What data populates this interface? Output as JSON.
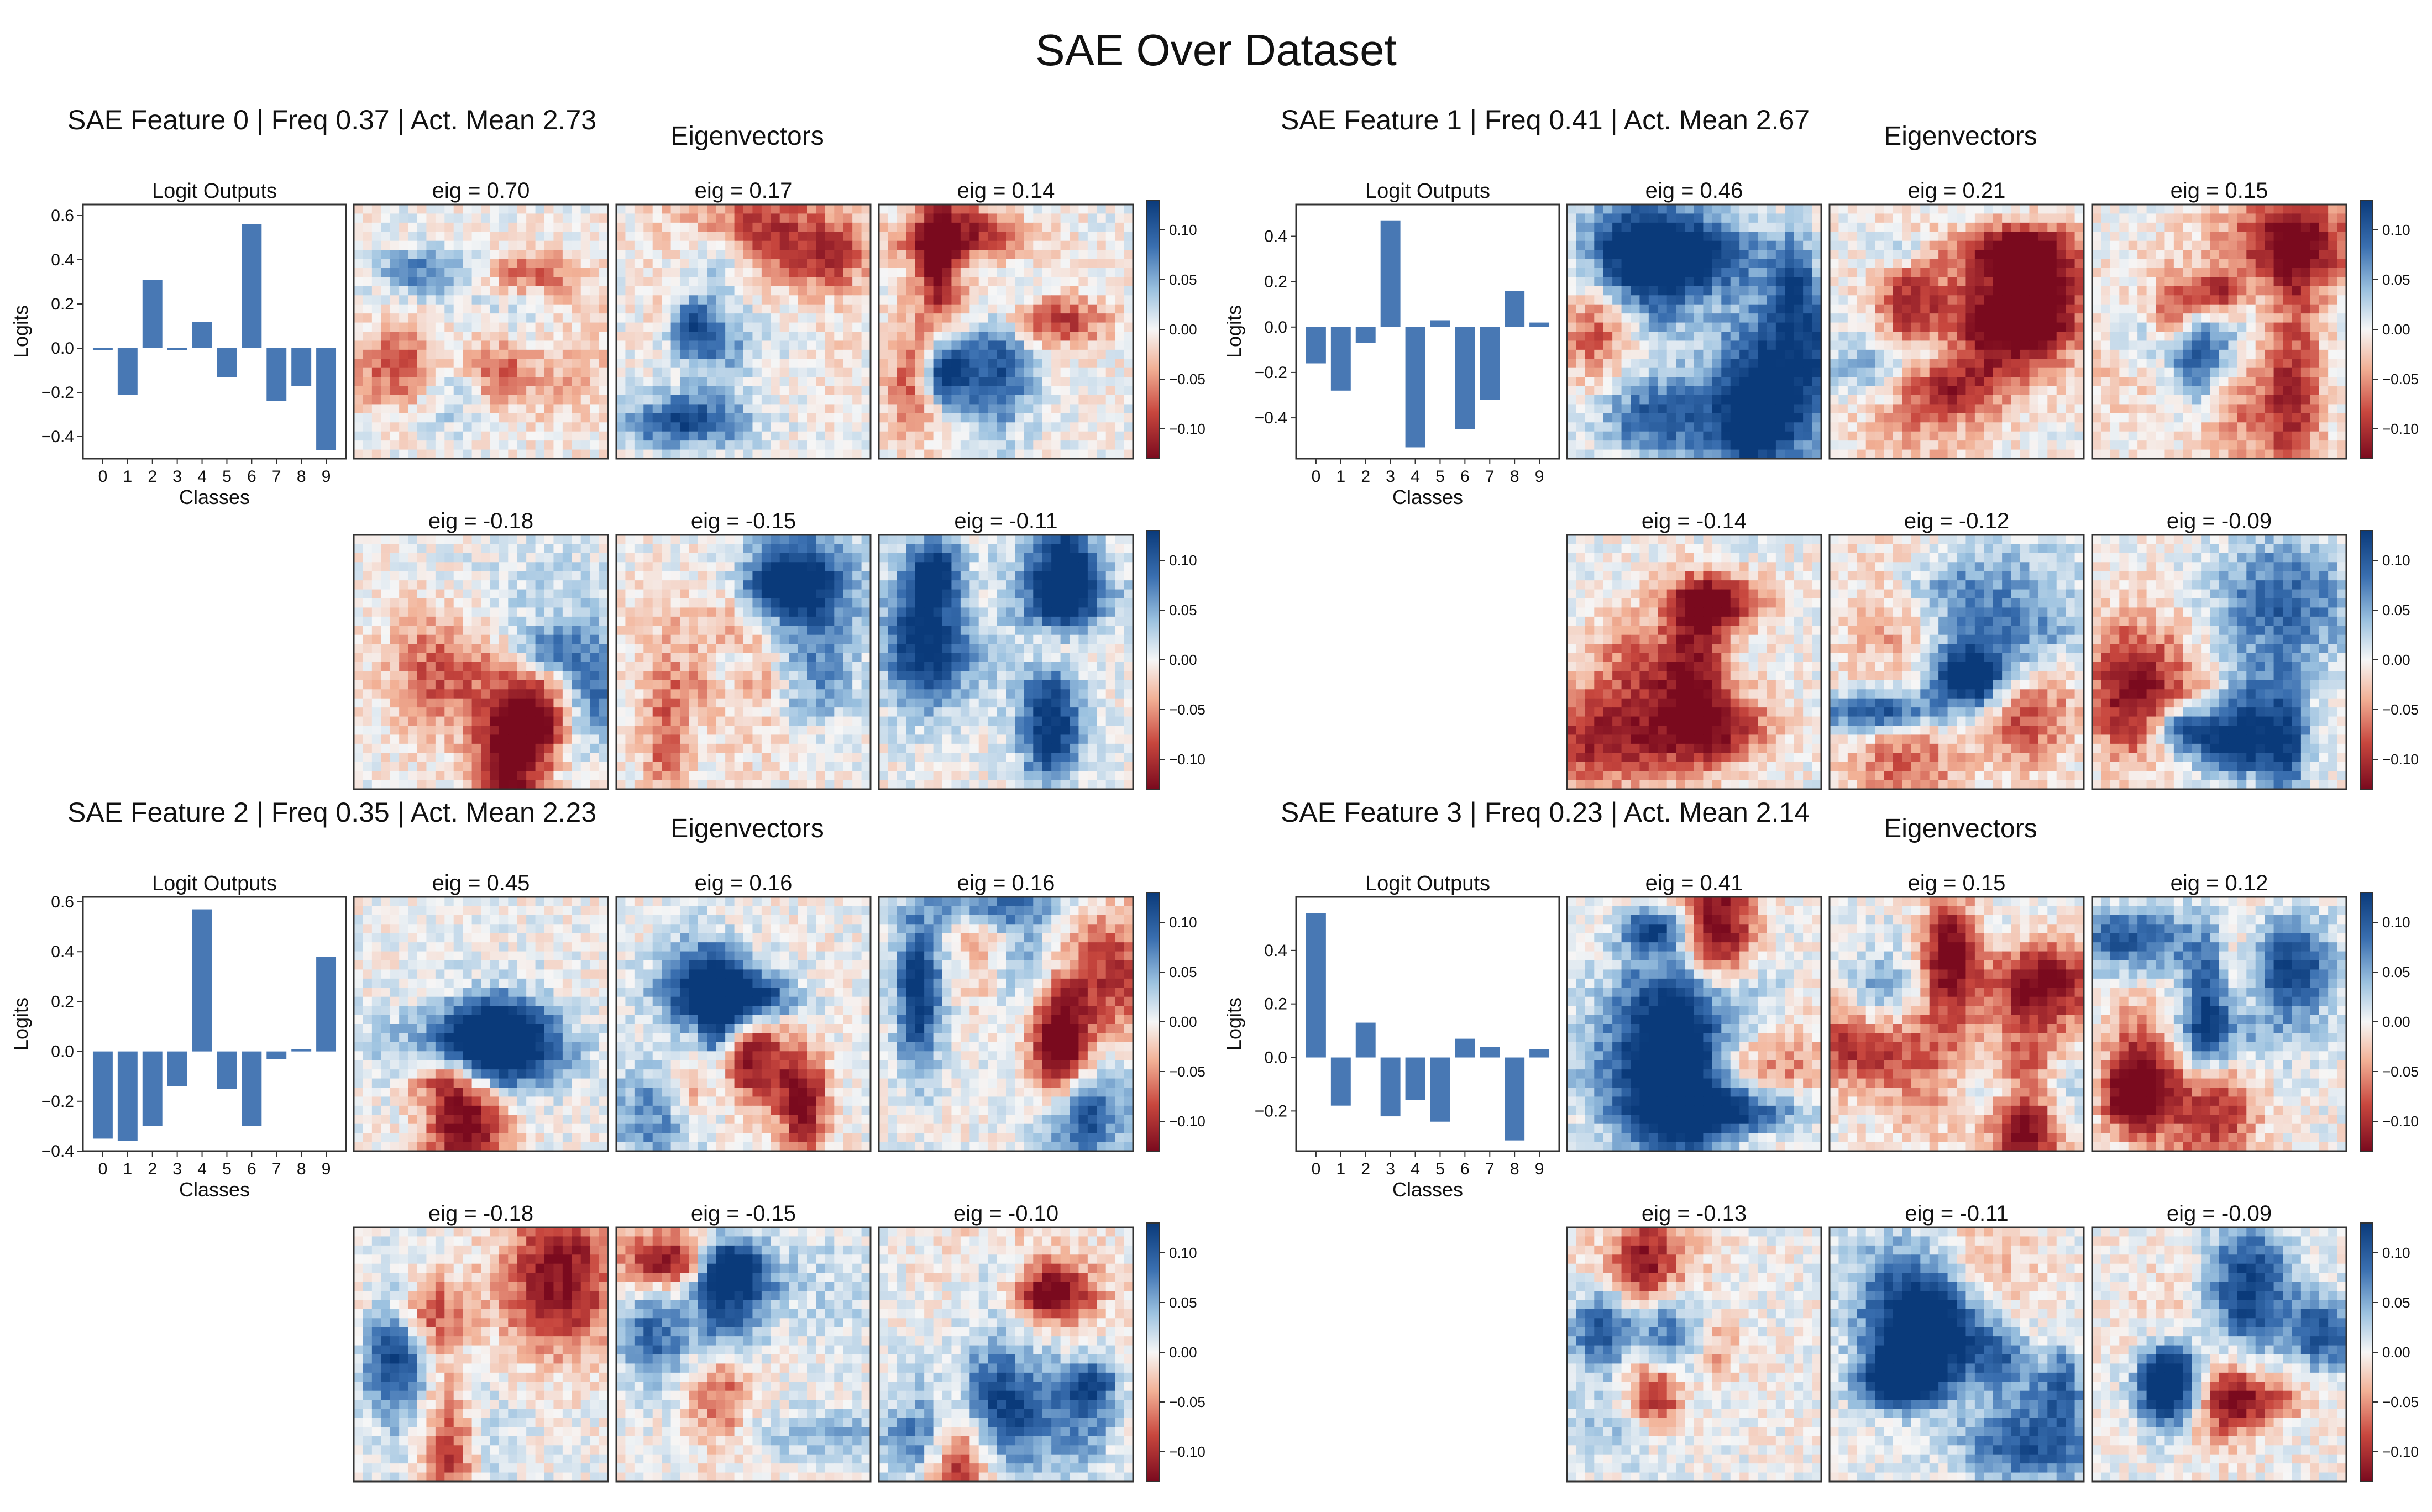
{
  "figure_title": "SAE Over Dataset",
  "eigen_section_title": "Eigenvectors",
  "eig_prefix": "eig = ",
  "colors": {
    "bar": "#4878b4",
    "positive": "#0a3a7a",
    "negative": "#7a0a1e",
    "neutral": "#f6f6f6",
    "frame": "#333333",
    "text": "#111111"
  },
  "colorbar": {
    "ticks": [
      "0.10",
      "0.05",
      "0.00",
      "−0.05",
      "−0.10"
    ],
    "tick_values": [
      0.1,
      0.05,
      0.0,
      -0.05,
      -0.1
    ],
    "range": [
      -0.13,
      0.13
    ],
    "colormap": "RdBu"
  },
  "chart_data": [
    {
      "type": "bar",
      "panel_title": "SAE Feature 0 | Freq 0.37 | Act. Mean 2.73",
      "title": "Logit Outputs",
      "xlabel": "Classes",
      "ylabel": "Logits",
      "categories": [
        "0",
        "1",
        "2",
        "3",
        "4",
        "5",
        "6",
        "7",
        "8",
        "9"
      ],
      "values": [
        -0.01,
        -0.21,
        0.31,
        -0.01,
        0.12,
        -0.13,
        0.56,
        -0.24,
        -0.17,
        -0.46
      ],
      "ylim": [
        -0.5,
        0.65
      ],
      "yticks": [
        -0.4,
        -0.2,
        0.0,
        0.2,
        0.4,
        0.6
      ],
      "ytick_labels": [
        "−0.4",
        "−0.2",
        "0.0",
        "0.2",
        "0.4",
        "0.6"
      ],
      "top_eigs": [
        "0.70",
        "0.17",
        "0.14"
      ],
      "bottom_eigs": [
        "-0.18",
        "-0.15",
        "-0.11"
      ]
    },
    {
      "type": "bar",
      "panel_title": "SAE Feature 1 | Freq 0.41 | Act. Mean 2.67",
      "title": "Logit Outputs",
      "xlabel": "Classes",
      "ylabel": "Logits",
      "categories": [
        "0",
        "1",
        "2",
        "3",
        "4",
        "5",
        "6",
        "7",
        "8",
        "9"
      ],
      "values": [
        -0.16,
        -0.28,
        -0.07,
        0.47,
        -0.53,
        0.03,
        -0.45,
        -0.32,
        0.16,
        0.02
      ],
      "ylim": [
        -0.58,
        0.54
      ],
      "yticks": [
        -0.4,
        -0.2,
        0.0,
        0.2,
        0.4
      ],
      "ytick_labels": [
        "−0.4",
        "−0.2",
        "0.0",
        "0.2",
        "0.4"
      ],
      "top_eigs": [
        "0.46",
        "0.21",
        "0.15"
      ],
      "bottom_eigs": [
        "-0.14",
        "-0.12",
        "-0.09"
      ]
    },
    {
      "type": "bar",
      "panel_title": "SAE Feature 2 | Freq 0.35 | Act. Mean 2.23",
      "title": "Logit Outputs",
      "xlabel": "Classes",
      "ylabel": "Logits",
      "categories": [
        "0",
        "1",
        "2",
        "3",
        "4",
        "5",
        "6",
        "7",
        "8",
        "9"
      ],
      "values": [
        -0.35,
        -0.36,
        -0.3,
        -0.14,
        0.57,
        -0.15,
        -0.3,
        -0.03,
        0.01,
        0.38
      ],
      "ylim": [
        -0.4,
        0.62
      ],
      "yticks": [
        -0.4,
        -0.2,
        0.0,
        0.2,
        0.4,
        0.6
      ],
      "ytick_labels": [
        "−0.4",
        "−0.2",
        "0.0",
        "0.2",
        "0.4",
        "0.6"
      ],
      "top_eigs": [
        "0.45",
        "0.16",
        "0.16"
      ],
      "bottom_eigs": [
        "-0.18",
        "-0.15",
        "-0.10"
      ]
    },
    {
      "type": "bar",
      "panel_title": "SAE Feature 3 | Freq 0.23 | Act. Mean 2.14",
      "title": "Logit Outputs",
      "xlabel": "Classes",
      "ylabel": "Logits",
      "categories": [
        "0",
        "1",
        "2",
        "3",
        "4",
        "5",
        "6",
        "7",
        "8",
        "9"
      ],
      "values": [
        0.54,
        -0.18,
        0.13,
        -0.22,
        -0.16,
        -0.24,
        0.07,
        0.04,
        -0.31,
        0.03
      ],
      "ylim": [
        -0.35,
        0.6
      ],
      "yticks": [
        -0.2,
        0.0,
        0.2,
        0.4
      ],
      "ytick_labels": [
        "−0.2",
        "0.0",
        "0.2",
        "0.4"
      ],
      "top_eigs": [
        "0.41",
        "0.15",
        "0.12"
      ],
      "bottom_eigs": [
        "-0.13",
        "-0.11",
        "-0.09"
      ]
    }
  ]
}
